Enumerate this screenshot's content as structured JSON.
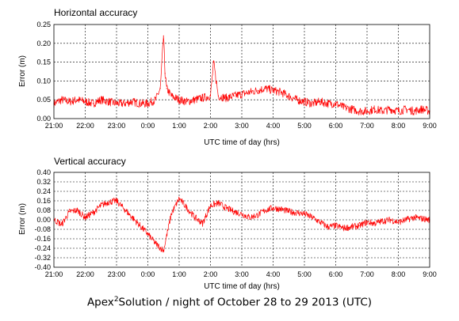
{
  "colors": {
    "series": "#ff0000",
    "axes": "#000000",
    "background": "#ffffff"
  },
  "footer": {
    "prefix": "Apex",
    "superscript": "2",
    "suffix": "Solution / night of October 28 to 29  2013 (UTC)"
  },
  "chart_data": [
    {
      "type": "line",
      "title": "Horizontal accuracy",
      "xlabel": "UTC time of day (hrs)",
      "ylabel": "Error (m)",
      "x_tick_labels": [
        "21:00",
        "22:00",
        "23:00",
        "0:00",
        "1:00",
        "2:00",
        "3:00",
        "4:00",
        "5:00",
        "6:00",
        "7:00",
        "8:00",
        "9:00"
      ],
      "y_tick_labels": [
        "0.00",
        "0.05",
        "0.10",
        "0.15",
        "0.20",
        "0.25"
      ],
      "y_ticks": [
        0,
        0.05,
        0.1,
        0.15,
        0.2,
        0.25
      ],
      "xlim": [
        21,
        33
      ],
      "ylim": [
        0,
        0.25
      ],
      "grid": true,
      "series": [
        {
          "color": "#ff0000",
          "x": [
            21,
            21.25,
            21.5,
            21.75,
            22,
            22.25,
            22.5,
            22.75,
            23,
            23.25,
            23.5,
            23.75,
            24,
            24.25,
            24.4,
            24.5,
            24.55,
            24.6,
            24.75,
            25,
            25.25,
            25.5,
            25.75,
            26,
            26.1,
            26.25,
            26.5,
            26.75,
            27,
            27.25,
            27.5,
            27.75,
            28,
            28.25,
            28.5,
            28.75,
            29,
            29.25,
            29.5,
            29.75,
            30,
            30.25,
            30.5,
            30.75,
            31,
            31.25,
            31.5,
            31.75,
            32,
            32.25,
            32.5,
            32.75,
            33
          ],
          "values": [
            0.04,
            0.05,
            0.045,
            0.05,
            0.045,
            0.04,
            0.05,
            0.045,
            0.04,
            0.04,
            0.045,
            0.04,
            0.04,
            0.05,
            0.08,
            0.22,
            0.12,
            0.08,
            0.06,
            0.05,
            0.045,
            0.05,
            0.055,
            0.06,
            0.15,
            0.06,
            0.055,
            0.06,
            0.065,
            0.07,
            0.075,
            0.08,
            0.075,
            0.07,
            0.06,
            0.05,
            0.045,
            0.04,
            0.045,
            0.04,
            0.04,
            0.03,
            0.025,
            0.02,
            0.02,
            0.025,
            0.02,
            0.025,
            0.02,
            0.025,
            0.02,
            0.025,
            0.02
          ]
        }
      ]
    },
    {
      "type": "line",
      "title": "Vertical accuracy",
      "xlabel": "UTC time of day (hrs)",
      "ylabel": "Error (m)",
      "x_tick_labels": [
        "21:00",
        "22:00",
        "23:00",
        "0:00",
        "1:00",
        "2:00",
        "3:00",
        "4:00",
        "5:00",
        "6:00",
        "7:00",
        "8:00",
        "9:00"
      ],
      "y_tick_labels": [
        "0.40",
        "0.32",
        "0.24",
        "0.16",
        "0.08",
        "0.00",
        "-0.08",
        "-0.16",
        "-0.24",
        "-0.32",
        "-0.40"
      ],
      "y_ticks": [
        0.4,
        0.32,
        0.24,
        0.16,
        0.08,
        0.0,
        -0.08,
        -0.16,
        -0.24,
        -0.32,
        -0.4
      ],
      "xlim": [
        21,
        33
      ],
      "ylim": [
        -0.4,
        0.4
      ],
      "grid": true,
      "series": [
        {
          "color": "#ff0000",
          "x": [
            21,
            21.25,
            21.5,
            21.75,
            22,
            22.25,
            22.5,
            22.75,
            23,
            23.25,
            23.5,
            23.75,
            24,
            24.25,
            24.5,
            24.75,
            25,
            25.25,
            25.5,
            25.75,
            26,
            26.25,
            26.5,
            26.75,
            27,
            27.25,
            27.5,
            27.75,
            28,
            28.25,
            28.5,
            28.75,
            29,
            29.25,
            29.5,
            29.75,
            30,
            30.25,
            30.5,
            30.75,
            31,
            31.25,
            31.5,
            31.75,
            32,
            32.25,
            32.5,
            32.75,
            33
          ],
          "values": [
            0.0,
            -0.04,
            0.07,
            0.08,
            0.02,
            0.06,
            0.12,
            0.15,
            0.16,
            0.09,
            0.02,
            -0.05,
            -0.12,
            -0.2,
            -0.26,
            0.05,
            0.18,
            0.1,
            0.02,
            -0.03,
            0.12,
            0.14,
            0.1,
            0.07,
            0.05,
            0.02,
            0.04,
            0.08,
            0.1,
            0.09,
            0.07,
            0.06,
            0.05,
            0.02,
            -0.02,
            -0.06,
            -0.05,
            -0.07,
            -0.06,
            -0.05,
            -0.02,
            -0.03,
            -0.01,
            0.0,
            -0.02,
            0.0,
            0.02,
            0.01,
            0.0
          ]
        }
      ]
    }
  ]
}
